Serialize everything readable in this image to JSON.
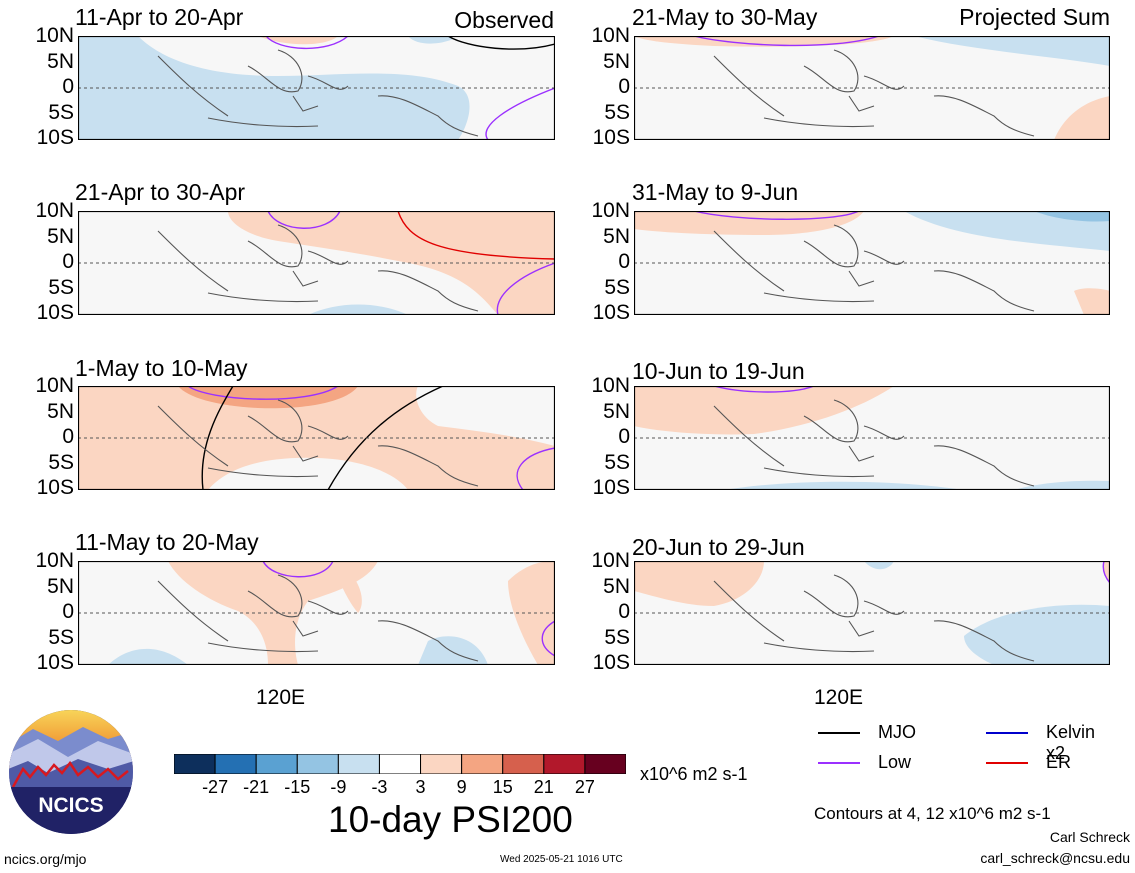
{
  "left_column_label": "Observed",
  "right_column_label": "Projected Sum",
  "panels_left": [
    {
      "title": "11-Apr to 20-Apr"
    },
    {
      "title": "21-Apr to 30-Apr"
    },
    {
      "title": "1-May to 10-May"
    },
    {
      "title": "11-May to 20-May"
    }
  ],
  "panels_right": [
    {
      "title": "21-May to 30-May"
    },
    {
      "title": "31-May to 9-Jun"
    },
    {
      "title": "10-Jun to 19-Jun"
    },
    {
      "title": "20-Jun to 29-Jun"
    }
  ],
  "lat_labels": [
    "10N",
    "5N",
    "0",
    "5S",
    "10S"
  ],
  "lon_label": "120E",
  "colorbar": {
    "colors": [
      "#0d2f5c",
      "#2470b3",
      "#5aa1d2",
      "#94c4e3",
      "#c8e0f0",
      "#ffffff",
      "#fbd6c2",
      "#f4a582",
      "#d6604d",
      "#b2182b",
      "#67001f"
    ],
    "ticks": [
      "-27",
      "-21",
      "-15",
      "-9",
      "-3",
      "3",
      "9",
      "15",
      "21",
      "27"
    ],
    "units": "x10^6 m2 s-1"
  },
  "chart_title": "10-day PSI200",
  "legend": [
    {
      "label": "MJO",
      "color": "#000000"
    },
    {
      "label": "Kelvin x2",
      "color": "#0000cc"
    },
    {
      "label": "Low",
      "color": "#9b30ff"
    },
    {
      "label": "ER",
      "color": "#e00000"
    }
  ],
  "contour_note": "Contours at 4, 12 x10^6 m2 s-1",
  "author": "Carl Schreck",
  "email": "carl_schreck@ncsu.edu",
  "website": "ncics.org/mjo",
  "timestamp": "Wed 2025-05-21 1016 UTC",
  "logo_text": "NCICS"
}
